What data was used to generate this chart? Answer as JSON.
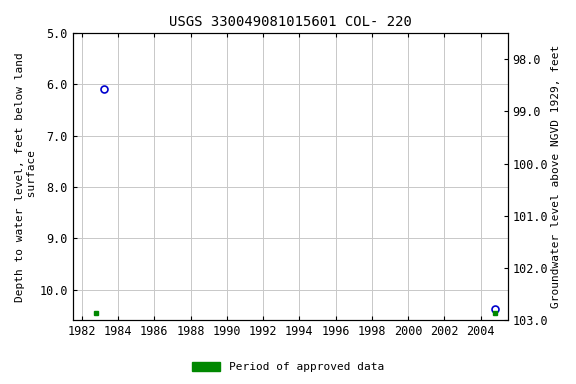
{
  "title": "USGS 330049081015601 COL- 220",
  "ylabel_left": "Depth to water level, feet below land\n surface",
  "ylabel_right": "Groundwater level above NGVD 1929, feet",
  "xlim": [
    1981.5,
    2005.5
  ],
  "ylim_left": [
    5.0,
    10.6
  ],
  "ylim_right_top": 103.0,
  "ylim_right_bottom": 97.5,
  "yticks_left": [
    5.0,
    6.0,
    7.0,
    8.0,
    9.0,
    10.0
  ],
  "yticks_right": [
    103.0,
    102.0,
    101.0,
    100.0,
    99.0,
    98.0
  ],
  "xticks": [
    1982,
    1984,
    1986,
    1988,
    1990,
    1992,
    1994,
    1996,
    1998,
    2000,
    2002,
    2004
  ],
  "blue_points_x": [
    1983.2,
    2004.8
  ],
  "blue_points_y": [
    6.1,
    10.38
  ],
  "green_square1_x": 1982.8,
  "green_square1_y": 10.45,
  "green_square2_x": 2004.8,
  "green_square2_y": 10.45,
  "background_color": "#ffffff",
  "grid_color": "#c8c8c8",
  "point_color": "#0000cc",
  "green_color": "#008800",
  "title_fontsize": 10,
  "label_fontsize": 8,
  "tick_fontsize": 8.5,
  "legend_label": "Period of approved data"
}
